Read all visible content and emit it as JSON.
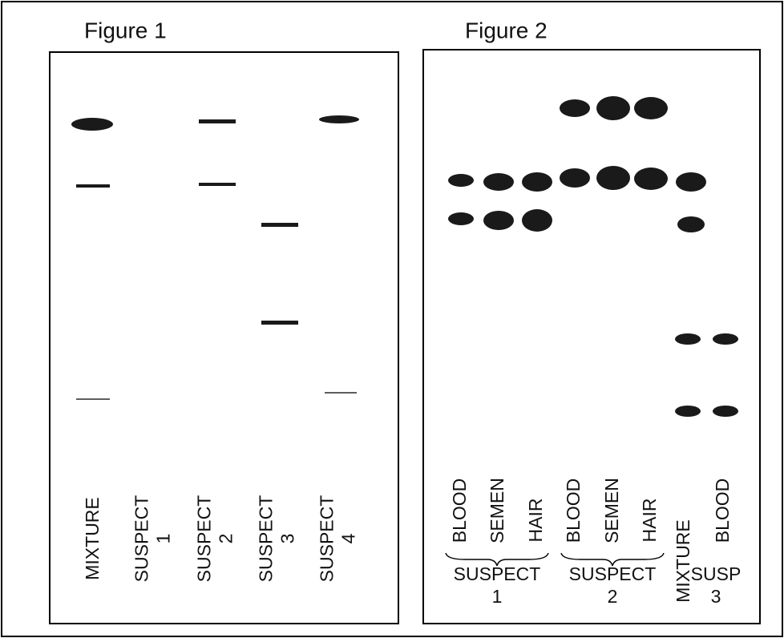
{
  "figures": [
    {
      "title": "Figure 1",
      "lanes": [
        [
          "MIXTURE"
        ],
        [
          "SUSPECT",
          "1"
        ],
        [
          "SUSPECT",
          "2"
        ],
        [
          "SUSPECT",
          "3"
        ],
        [
          "SUSPECT",
          "4"
        ]
      ]
    },
    {
      "title": "Figure 2",
      "lanes": [
        [
          "BLOOD"
        ],
        [
          "SEMEN"
        ],
        [
          "HAIR"
        ],
        [
          "BLOOD"
        ],
        [
          "SEMEN"
        ],
        [
          "HAIR"
        ],
        [
          "MIXTURE"
        ],
        [
          "BLOOD"
        ]
      ],
      "groups": [
        [
          "SUSPECT",
          "1"
        ],
        [
          "SUSPECT",
          "2"
        ],
        [
          "SUSP",
          "3"
        ]
      ]
    }
  ]
}
